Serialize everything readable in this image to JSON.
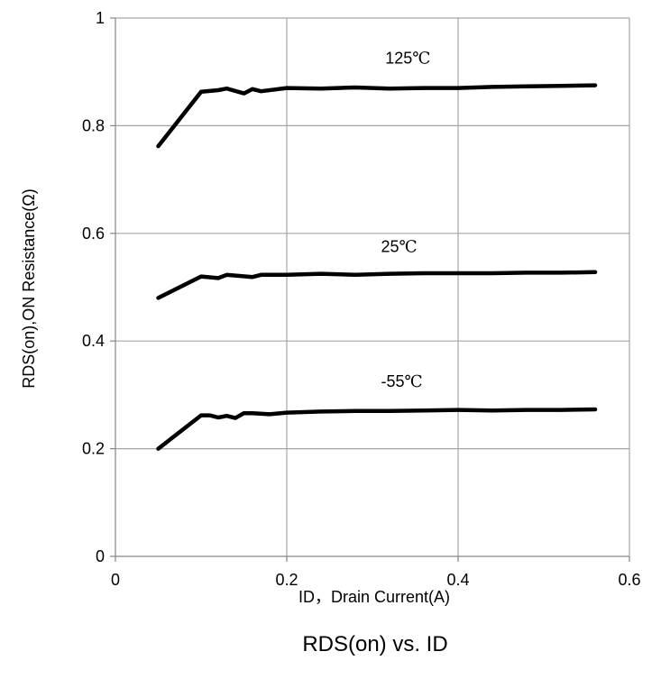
{
  "chart_data": {
    "type": "line",
    "title": "RDS(on) vs. ID",
    "xlabel": "ID，Drain Current(A)",
    "ylabel": "RDS(on),ON Resistance(Ω)",
    "xlim": [
      0,
      0.6
    ],
    "ylim": [
      0,
      1
    ],
    "xticks": [
      "0",
      "0.2",
      "0.4",
      "0.6"
    ],
    "yticks": [
      "0",
      "0.2",
      "0.4",
      "0.6",
      "0.8",
      "1"
    ],
    "grid": true,
    "series": [
      {
        "name": "125℃",
        "x": [
          0.05,
          0.1,
          0.12,
          0.13,
          0.15,
          0.16,
          0.17,
          0.2,
          0.24,
          0.28,
          0.32,
          0.36,
          0.4,
          0.44,
          0.48,
          0.52,
          0.56
        ],
        "y": [
          0.762,
          0.863,
          0.866,
          0.869,
          0.86,
          0.868,
          0.864,
          0.87,
          0.869,
          0.871,
          0.869,
          0.87,
          0.87,
          0.872,
          0.873,
          0.874,
          0.875
        ]
      },
      {
        "name": "25℃",
        "x": [
          0.05,
          0.1,
          0.12,
          0.13,
          0.16,
          0.17,
          0.2,
          0.24,
          0.28,
          0.32,
          0.36,
          0.4,
          0.44,
          0.48,
          0.52,
          0.56
        ],
        "y": [
          0.48,
          0.52,
          0.517,
          0.523,
          0.519,
          0.523,
          0.523,
          0.525,
          0.523,
          0.525,
          0.526,
          0.526,
          0.526,
          0.527,
          0.527,
          0.528
        ]
      },
      {
        "name": "-55℃",
        "x": [
          0.05,
          0.1,
          0.11,
          0.12,
          0.13,
          0.14,
          0.15,
          0.16,
          0.18,
          0.2,
          0.24,
          0.28,
          0.32,
          0.36,
          0.4,
          0.44,
          0.48,
          0.52,
          0.56
        ],
        "y": [
          0.2,
          0.262,
          0.262,
          0.258,
          0.261,
          0.257,
          0.266,
          0.266,
          0.264,
          0.267,
          0.269,
          0.27,
          0.27,
          0.271,
          0.272,
          0.271,
          0.272,
          0.272,
          0.273
        ]
      }
    ],
    "annotations": [
      {
        "text": "125℃",
        "x": 0.315,
        "y": 0.915
      },
      {
        "text": "25℃",
        "x": 0.31,
        "y": 0.565
      },
      {
        "text": "-55℃",
        "x": 0.31,
        "y": 0.315
      }
    ]
  }
}
